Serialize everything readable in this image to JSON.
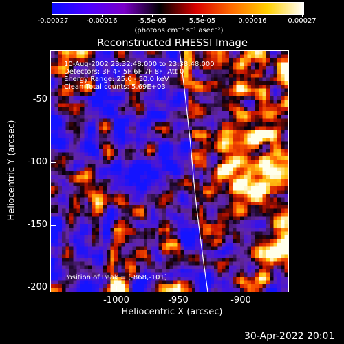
{
  "colorbar": {
    "ticks": [
      "-0.00027",
      "-0.00016",
      "-5.5e-05",
      "5.5e-05",
      "0.00016",
      "0.00027"
    ],
    "units": "(photons cm⁻² s⁻¹ asec⁻²)",
    "colors": [
      "#0b0bff",
      "#4b00ff",
      "#7a00c8",
      "#000000",
      "#d80000",
      "#ff6a00",
      "#ffd000",
      "#ffffff"
    ]
  },
  "title": "Reconstructed RHESSI Image",
  "info": {
    "line1": "10-Aug-2002 23:32:48.000 to 23:38:48.000",
    "line2": "Detectors: 3F 4F 5F 6F 7F 8F, Att 0",
    "line3": "Energy Range: 25.0 - 50.0 keV",
    "line4": "Clean     Total counts: 5.69E+03",
    "peak": "Position of Peak = [-868,-101]"
  },
  "axes": {
    "xlabel": "Heliocentric X (arcsec)",
    "ylabel": "Heliocentric Y (arcsec)",
    "xticks": [
      "-1000",
      "-950",
      "-900"
    ],
    "yticks": [
      "-50",
      "-100",
      "-150",
      "-200"
    ]
  },
  "footer_date": "30-Apr-2022 20:01"
}
